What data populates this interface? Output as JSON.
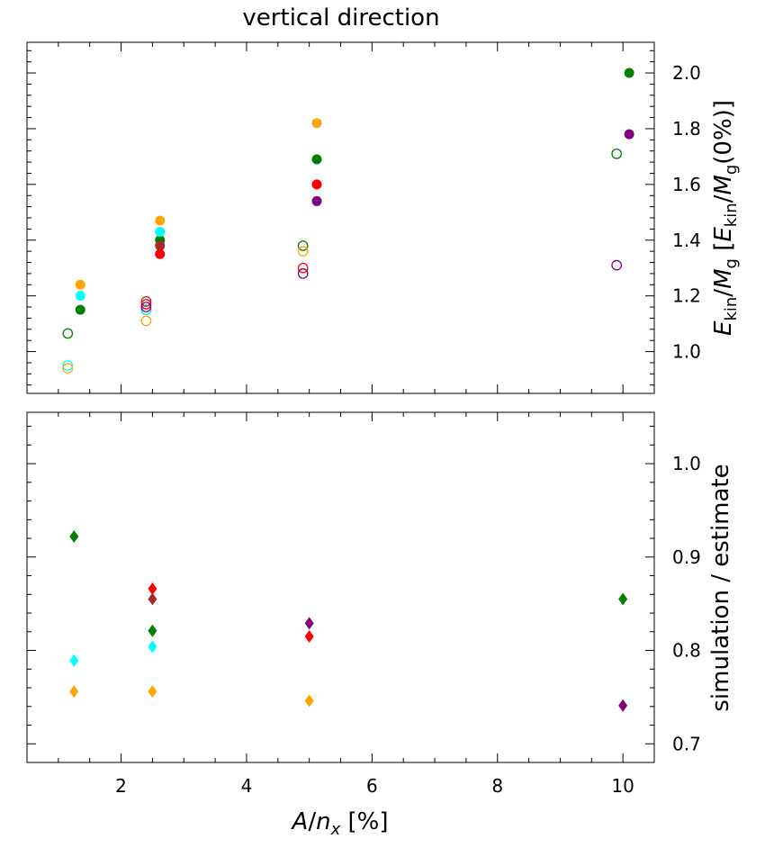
{
  "chart_data": [
    {
      "type": "scatter",
      "title": "vertical direction",
      "xlabel": "",
      "ylabel": "E_kin/M_g [E_kin/M_g(0%)]",
      "xlim": [
        0.5,
        10.5
      ],
      "ylim": [
        0.85,
        2.11
      ],
      "y_ticks": [
        1.0,
        1.2,
        1.4,
        1.6,
        1.8,
        2.0
      ],
      "y_tick_labels": [
        "1.0",
        "1.2",
        "1.4",
        "1.6",
        "1.8",
        "2.0"
      ],
      "y_axis_side": "right",
      "legend": "none",
      "grid": false,
      "series": [
        {
          "color": "#ffa500",
          "marker": "filled-circle",
          "points": [
            [
              1.35,
              1.24
            ],
            [
              2.62,
              1.47
            ],
            [
              5.12,
              1.82
            ]
          ]
        },
        {
          "color": "#008000",
          "marker": "filled-circle",
          "points": [
            [
              1.35,
              1.15
            ],
            [
              2.62,
              1.4
            ],
            [
              5.12,
              1.69
            ],
            [
              10.1,
              2.0
            ]
          ]
        },
        {
          "color": "#00ffff",
          "marker": "filled-circle",
          "points": [
            [
              1.35,
              1.2
            ],
            [
              2.62,
              1.43
            ]
          ]
        },
        {
          "color": "#a52a2a",
          "marker": "filled-circle",
          "points": [
            [
              2.62,
              1.38
            ]
          ]
        },
        {
          "color": "#ff0000",
          "marker": "filled-circle",
          "points": [
            [
              2.62,
              1.35
            ],
            [
              5.12,
              1.6
            ]
          ]
        },
        {
          "color": "#800080",
          "marker": "filled-circle",
          "points": [
            [
              5.12,
              1.54
            ],
            [
              10.1,
              1.78
            ]
          ]
        },
        {
          "color": "#008000",
          "marker": "open-circle",
          "points": [
            [
              1.15,
              1.065
            ],
            [
              2.4,
              1.15
            ],
            [
              4.9,
              1.38
            ],
            [
              9.9,
              1.71
            ]
          ]
        },
        {
          "color": "#00ffff",
          "marker": "open-circle",
          "points": [
            [
              1.15,
              0.95
            ],
            [
              2.4,
              1.15
            ]
          ]
        },
        {
          "color": "#ffa500",
          "marker": "open-circle",
          "points": [
            [
              1.15,
              0.94
            ],
            [
              2.4,
              1.11
            ],
            [
              4.9,
              1.36
            ]
          ]
        },
        {
          "color": "#a52a2a",
          "marker": "open-circle",
          "points": [
            [
              2.4,
              1.18
            ]
          ]
        },
        {
          "color": "#ff0000",
          "marker": "open-circle",
          "points": [
            [
              2.4,
              1.17
            ],
            [
              4.9,
              1.3
            ]
          ]
        },
        {
          "color": "#800080",
          "marker": "open-circle",
          "points": [
            [
              2.4,
              1.16
            ],
            [
              4.9,
              1.28
            ],
            [
              9.9,
              1.31
            ]
          ]
        }
      ]
    },
    {
      "type": "scatter",
      "title": "",
      "xlabel": "A/n_x [%]",
      "ylabel": "simulation / estimate",
      "xlim": [
        0.5,
        10.5
      ],
      "ylim": [
        0.68,
        1.055
      ],
      "x_ticks": [
        2,
        4,
        6,
        8,
        10
      ],
      "x_tick_labels": [
        "2",
        "4",
        "6",
        "8",
        "10"
      ],
      "y_ticks": [
        0.7,
        0.8,
        0.9,
        1.0
      ],
      "y_tick_labels": [
        "0.7",
        "0.8",
        "0.9",
        "1.0"
      ],
      "y_axis_side": "right",
      "legend": "none",
      "grid": false,
      "series": [
        {
          "color": "#008000",
          "marker": "diamond",
          "points": [
            [
              1.25,
              0.922
            ],
            [
              2.5,
              0.821
            ],
            [
              10.0,
              0.855
            ]
          ]
        },
        {
          "color": "#00ffff",
          "marker": "diamond",
          "points": [
            [
              1.25,
              0.789
            ],
            [
              2.5,
              0.804
            ]
          ]
        },
        {
          "color": "#ffa500",
          "marker": "diamond",
          "points": [
            [
              1.25,
              0.756
            ],
            [
              2.5,
              0.756
            ],
            [
              5.0,
              0.746
            ]
          ]
        },
        {
          "color": "#ff0000",
          "marker": "diamond",
          "points": [
            [
              2.5,
              0.866
            ],
            [
              5.0,
              0.815
            ]
          ]
        },
        {
          "color": "#a52a2a",
          "marker": "diamond",
          "points": [
            [
              2.5,
              0.855
            ]
          ]
        },
        {
          "color": "#800080",
          "marker": "diamond",
          "points": [
            [
              5.0,
              0.829
            ],
            [
              10.0,
              0.741
            ]
          ]
        }
      ]
    }
  ]
}
